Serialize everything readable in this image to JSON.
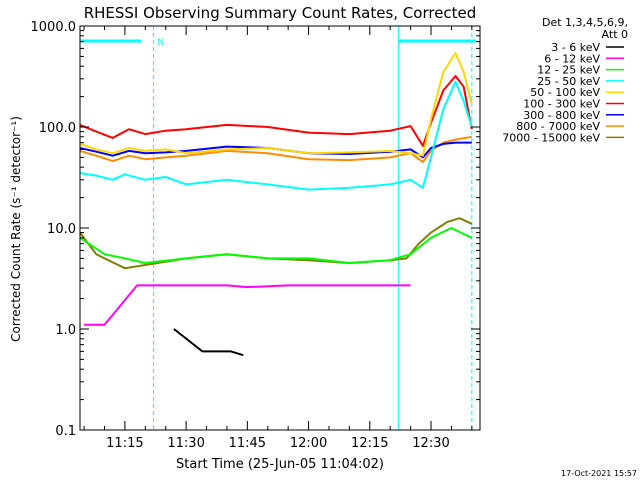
{
  "chart_data": {
    "type": "line",
    "title": "RHESSI Observing Summary Count Rates, Corrected",
    "xlabel": "Start Time (25-Jun-05 11:04:02)",
    "ylabel": "Corrected Count Rate (s⁻¹ detector⁻¹)",
    "xlim": [
      "11:04",
      "12:42"
    ],
    "ylim": [
      0.1,
      1000
    ],
    "yscale": "log",
    "x_ticks": [
      "11:15",
      "11:30",
      "11:45",
      "12:00",
      "12:15",
      "12:30"
    ],
    "y_ticks": [
      "0.1",
      "1.0",
      "10.0",
      "100.0",
      "1000.0"
    ],
    "legend_header": [
      "Det 1,3,4,5,6,9,",
      "Att 0"
    ],
    "legend_position": "right",
    "timestamp": "17-Oct-2021 15:57",
    "flag_label": "N",
    "markers": {
      "solid_lines": [
        "11:04",
        "12:22"
      ],
      "dashed_lines": [
        "11:22",
        "12:40"
      ],
      "bars": [
        [
          "11:04",
          "11:19"
        ],
        [
          "12:22",
          "12:41"
        ]
      ]
    },
    "series": [
      {
        "name": "3 - 6 keV",
        "color": "#000000",
        "x": [
          "11:27",
          "11:34",
          "11:41",
          "11:44"
        ],
        "y": [
          1.0,
          0.6,
          0.6,
          0.55
        ]
      },
      {
        "name": "6 - 12 keV",
        "color": "#ff00ff",
        "x": [
          "11:05",
          "11:10",
          "11:18",
          "11:30",
          "11:40",
          "11:45",
          "11:55",
          "12:05",
          "12:15",
          "12:20",
          "12:25"
        ],
        "y": [
          1.1,
          1.1,
          2.7,
          2.7,
          2.7,
          2.6,
          2.7,
          2.7,
          2.7,
          2.7,
          2.7
        ]
      },
      {
        "name": "12 - 25 keV",
        "color": "#00ff00",
        "x": [
          "11:04",
          "11:10",
          "11:15",
          "11:20",
          "11:30",
          "11:40",
          "11:50",
          "12:00",
          "12:10",
          "12:20",
          "12:25",
          "12:30",
          "12:35",
          "12:40"
        ],
        "y": [
          8,
          5.5,
          5,
          4.5,
          5,
          5.5,
          5,
          5,
          4.5,
          4.8,
          5.5,
          8,
          10,
          8
        ]
      },
      {
        "name": "25 - 50 keV",
        "color": "#00ffff",
        "x": [
          "11:04",
          "11:08",
          "11:12",
          "11:15",
          "11:20",
          "11:25",
          "11:30",
          "11:40",
          "11:50",
          "12:00",
          "12:10",
          "12:20",
          "12:25",
          "12:28",
          "12:30",
          "12:33",
          "12:36",
          "12:38",
          "12:40"
        ],
        "y": [
          35,
          33,
          30,
          34,
          30,
          32,
          27,
          30,
          27,
          24,
          25,
          27,
          30,
          25,
          50,
          150,
          280,
          180,
          100
        ]
      },
      {
        "name": "50 - 100 keV",
        "color": "#ffd700",
        "x": [
          "11:04",
          "11:08",
          "11:12",
          "11:16",
          "11:20",
          "11:25",
          "11:30",
          "11:40",
          "11:50",
          "12:00",
          "12:10",
          "12:20",
          "12:25",
          "12:28",
          "12:30",
          "12:33",
          "12:36",
          "12:38",
          "12:40"
        ],
        "y": [
          68,
          60,
          55,
          62,
          58,
          60,
          55,
          60,
          62,
          55,
          56,
          58,
          55,
          52,
          120,
          350,
          540,
          350,
          170
        ]
      },
      {
        "name": "100 - 300 keV",
        "color": "#ff0000",
        "x": [
          "11:04",
          "11:08",
          "11:12",
          "11:16",
          "11:20",
          "11:25",
          "11:30",
          "11:40",
          "11:50",
          "12:00",
          "12:10",
          "12:20",
          "12:25",
          "12:28",
          "12:30",
          "12:33",
          "12:36",
          "12:38",
          "12:40"
        ],
        "y": [
          105,
          90,
          78,
          95,
          85,
          92,
          95,
          105,
          100,
          88,
          85,
          92,
          102,
          65,
          110,
          230,
          320,
          250,
          95
        ]
      },
      {
        "name": "300 - 800 keV",
        "color": "#0000ff",
        "x": [
          "11:04",
          "11:08",
          "11:12",
          "11:16",
          "11:20",
          "11:25",
          "11:30",
          "11:40",
          "11:50",
          "12:00",
          "12:10",
          "12:20",
          "12:25",
          "12:28",
          "12:30",
          "12:33",
          "12:36",
          "12:40"
        ],
        "y": [
          62,
          57,
          52,
          58,
          55,
          56,
          58,
          64,
          62,
          55,
          54,
          57,
          60,
          50,
          62,
          68,
          70,
          70
        ]
      },
      {
        "name": "800 - 7000 keV",
        "color": "#ff8c00",
        "x": [
          "11:04",
          "11:08",
          "11:12",
          "11:16",
          "11:20",
          "11:25",
          "11:30",
          "11:40",
          "11:50",
          "12:00",
          "12:10",
          "12:20",
          "12:25",
          "12:28",
          "12:30",
          "12:33",
          "12:36",
          "12:40"
        ],
        "y": [
          58,
          52,
          46,
          52,
          48,
          50,
          52,
          58,
          55,
          48,
          47,
          50,
          55,
          45,
          58,
          70,
          75,
          80
        ]
      },
      {
        "name": "7000 - 15000 keV",
        "color": "#808000",
        "x": [
          "11:04",
          "11:06",
          "11:08",
          "11:10",
          "11:15",
          "11:20",
          "11:30",
          "11:40",
          "11:50",
          "12:00",
          "12:10",
          "12:20",
          "12:24",
          "12:27",
          "12:30",
          "12:34",
          "12:37",
          "12:40"
        ],
        "y": [
          9,
          7,
          5.5,
          5,
          4,
          4.3,
          5,
          5.5,
          5,
          4.8,
          4.5,
          4.8,
          5,
          7,
          9,
          11.5,
          12.5,
          11
        ]
      }
    ]
  }
}
